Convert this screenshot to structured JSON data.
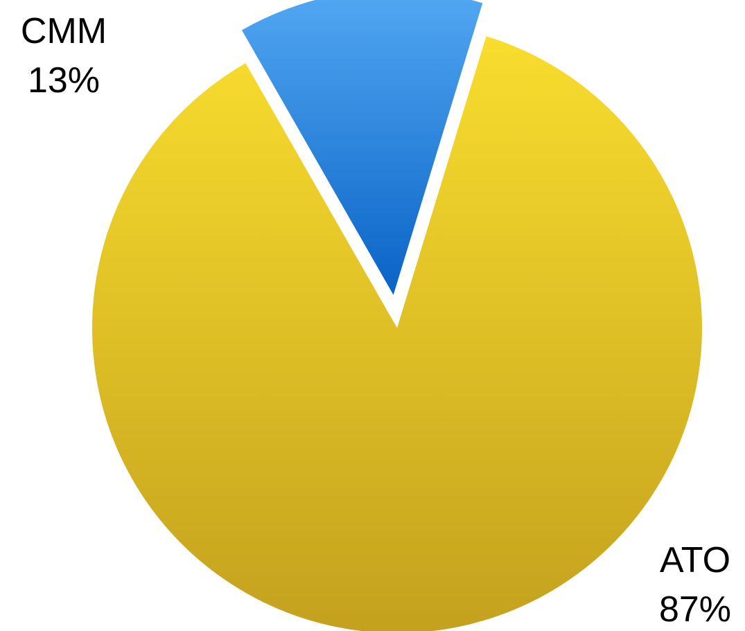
{
  "chart_data": {
    "type": "pie",
    "categories": [
      "CMM",
      "ATO"
    ],
    "values": [
      13,
      87
    ],
    "value_labels": [
      "13%",
      "87%"
    ],
    "exploded": [
      "CMM"
    ],
    "colors": {
      "CMM": {
        "top": "#52A8F2",
        "bottom": "#0A63C6"
      },
      "ATO": {
        "top": "#F8DD2E",
        "bottom": "#C4A11E"
      }
    },
    "legend": "none",
    "title": ""
  }
}
